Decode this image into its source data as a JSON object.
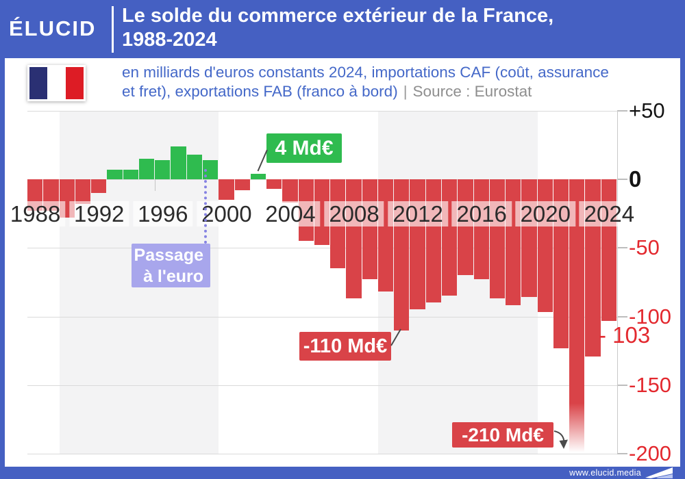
{
  "header": {
    "logo": "ÉLUCID",
    "title_line1": "Le solde du commerce extérieur de la France,",
    "title_line2": "1988-2024"
  },
  "subtitle": {
    "line1": "en milliards d'euros constants 2024, importations CAF (coût, assurance",
    "line2_blue": "et fret), exportations FAB (franco à bord)",
    "separator": "|",
    "source": "Source : Eurostat"
  },
  "footer": {
    "url": "www.elucid.media"
  },
  "flag_colors": [
    "#2a3073",
    "#ffffff",
    "#dd1c25"
  ],
  "colors": {
    "brand_blue": "#4560c2",
    "bar_negative": "#d94348",
    "bar_positive": "#2fbb4f",
    "axis_red": "#e3282e",
    "euro_annotation": "#a8a6ec"
  },
  "chart_data": {
    "type": "bar",
    "title": "Le solde du commerce extérieur de la France, 1988-2024",
    "unit": "milliards d'euros constants 2024",
    "source": "Eurostat",
    "ylim": [
      -215,
      50
    ],
    "x": [
      1988,
      1989,
      1990,
      1991,
      1992,
      1993,
      1994,
      1995,
      1996,
      1997,
      1998,
      1999,
      2000,
      2001,
      2002,
      2003,
      2004,
      2005,
      2006,
      2007,
      2008,
      2009,
      2010,
      2011,
      2012,
      2013,
      2014,
      2015,
      2016,
      2017,
      2018,
      2019,
      2020,
      2021,
      2022,
      2023,
      2024
    ],
    "values": [
      -23,
      -23,
      -28,
      -18,
      -10,
      7,
      7,
      15,
      14,
      24,
      18,
      14,
      -15,
      -8,
      4,
      -7,
      -17,
      -45,
      -48,
      -65,
      -87,
      -73,
      -82,
      -110,
      -95,
      -90,
      -85,
      -70,
      -73,
      -87,
      -92,
      -86,
      -97,
      -123,
      -210,
      -129,
      -103
    ],
    "x_tick_labels": [
      "1988",
      "1992",
      "1996",
      "2000",
      "2004",
      "2008",
      "2012",
      "2016",
      "2020",
      "2024"
    ],
    "y_axis": {
      "tick_labels": [
        "+50",
        "0",
        "-50",
        "-100",
        "-150",
        "-200"
      ],
      "tick_values": [
        50,
        0,
        -50,
        -100,
        -150,
        -200
      ],
      "current_value_label": "- 103"
    },
    "annotations": [
      {
        "id": "surplus-2002",
        "text": "4 Md€",
        "year": 2002,
        "value": 4
      },
      {
        "id": "euro-transition",
        "lines": [
          "Passage",
          "à l'euro"
        ],
        "year": 1999
      },
      {
        "id": "deficit-2011",
        "text": "-110 Md€",
        "year": 2011,
        "value": -110
      },
      {
        "id": "deficit-2022",
        "text": "-210 Md€",
        "year": 2022,
        "value": -210
      }
    ]
  }
}
